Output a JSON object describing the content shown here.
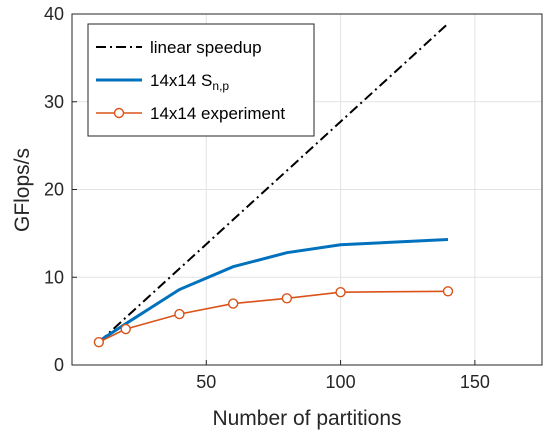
{
  "chart_data": {
    "type": "line",
    "xlabel": "Number of partitions",
    "ylabel": "GFlops/s",
    "xlim": [
      0,
      175
    ],
    "ylim": [
      0,
      40
    ],
    "xticks": [
      50,
      100,
      150
    ],
    "yticks": [
      0,
      10,
      20,
      30,
      40
    ],
    "grid": true,
    "legend_position": "top-left",
    "series": [
      {
        "name": "linear speedup",
        "legend_main": "linear speedup",
        "legend_sub": "",
        "color": "#000000",
        "style": "dashdot",
        "marker": "none",
        "x": [
          10,
          140
        ],
        "y": [
          2.6,
          38.9
        ]
      },
      {
        "name": "14x14 Sn,p",
        "legend_main": "14x14 S",
        "legend_sub": "n,p",
        "color": "#0072BD",
        "style": "solid",
        "marker": "none",
        "x": [
          10,
          20,
          40,
          60,
          80,
          100,
          140
        ],
        "y": [
          2.7,
          4.7,
          8.6,
          11.2,
          12.8,
          13.7,
          14.3
        ]
      },
      {
        "name": "14x14 experiment",
        "legend_main": "14x14 experiment",
        "legend_sub": "",
        "color": "#D95319",
        "style": "solid",
        "marker": "circle",
        "x": [
          10,
          20,
          40,
          60,
          80,
          100,
          140
        ],
        "y": [
          2.6,
          4.1,
          5.8,
          7.0,
          7.6,
          8.3,
          8.4
        ]
      }
    ]
  }
}
